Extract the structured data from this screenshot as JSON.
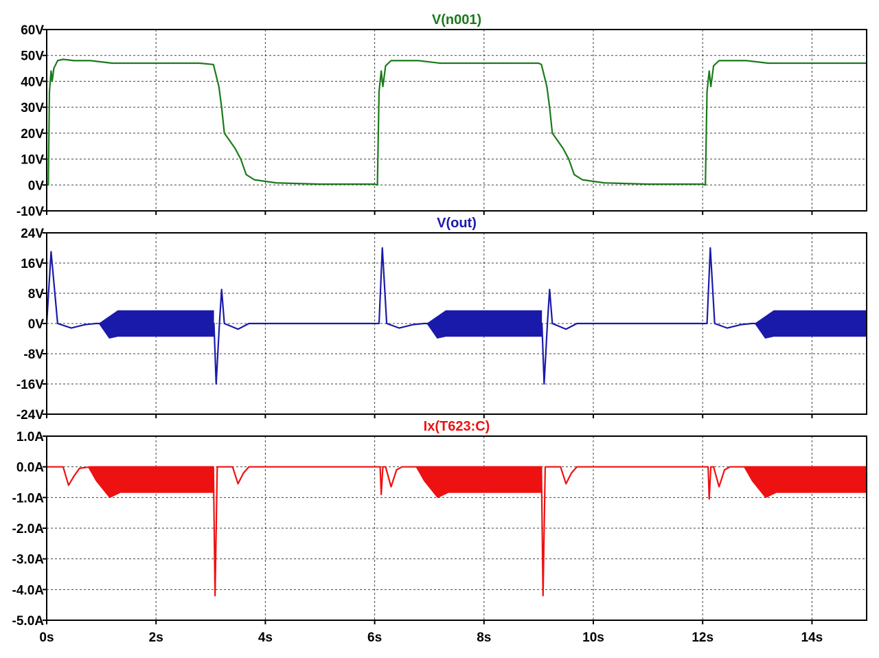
{
  "chart_data": [
    {
      "type": "line",
      "title": "V(n001)",
      "color": "#1a7a1a",
      "x_range": [
        0,
        15
      ],
      "y_range": [
        -10,
        60
      ],
      "y_ticks": [
        60,
        50,
        40,
        30,
        20,
        10,
        0,
        -10
      ],
      "y_tick_labels": [
        "60V",
        "50V",
        "40V",
        "30V",
        "20V",
        "10V",
        "0V",
        "-10V"
      ],
      "grid": true,
      "series": [
        {
          "name": "V(n001)",
          "points": [
            [
              0,
              0
            ],
            [
              0.03,
              0
            ],
            [
              0.05,
              36
            ],
            [
              0.08,
              44
            ],
            [
              0.1,
              40
            ],
            [
              0.13,
              45
            ],
            [
              0.2,
              48
            ],
            [
              0.3,
              48.5
            ],
            [
              0.5,
              48
            ],
            [
              0.8,
              48
            ],
            [
              1.2,
              47
            ],
            [
              2.0,
              47
            ],
            [
              2.8,
              47
            ],
            [
              3.05,
              46.5
            ],
            [
              3.15,
              38
            ],
            [
              3.2,
              30
            ],
            [
              3.25,
              20
            ],
            [
              3.35,
              17
            ],
            [
              3.45,
              14
            ],
            [
              3.55,
              10
            ],
            [
              3.65,
              4
            ],
            [
              3.8,
              2
            ],
            [
              4.2,
              0.8
            ],
            [
              5,
              0.3
            ],
            [
              6.0,
              0.3
            ],
            [
              6.05,
              0
            ],
            [
              6.08,
              36
            ],
            [
              6.12,
              44
            ],
            [
              6.15,
              38
            ],
            [
              6.2,
              46
            ],
            [
              6.3,
              48
            ],
            [
              6.5,
              48
            ],
            [
              6.8,
              48
            ],
            [
              7.2,
              47
            ],
            [
              8.0,
              47
            ],
            [
              9.0,
              47
            ],
            [
              9.05,
              46.5
            ],
            [
              9.15,
              38
            ],
            [
              9.2,
              30
            ],
            [
              9.25,
              20
            ],
            [
              9.35,
              17
            ],
            [
              9.45,
              14
            ],
            [
              9.55,
              10
            ],
            [
              9.65,
              4
            ],
            [
              9.8,
              2
            ],
            [
              10.2,
              0.8
            ],
            [
              11,
              0.3
            ],
            [
              12.0,
              0.3
            ],
            [
              12.05,
              0
            ],
            [
              12.08,
              36
            ],
            [
              12.12,
              44
            ],
            [
              12.15,
              38
            ],
            [
              12.2,
              46
            ],
            [
              12.3,
              48
            ],
            [
              12.5,
              48
            ],
            [
              12.8,
              48
            ],
            [
              13.2,
              47
            ],
            [
              14,
              47
            ],
            [
              15,
              47
            ]
          ]
        }
      ]
    },
    {
      "type": "line",
      "title": "V(out)",
      "color": "#1a1aaa",
      "x_range": [
        0,
        15
      ],
      "y_range": [
        -24,
        24
      ],
      "y_ticks": [
        24,
        16,
        8,
        0,
        -8,
        -16,
        -24
      ],
      "y_tick_labels": [
        "24V",
        "16V",
        "8V",
        "0V",
        "-8V",
        "-16V",
        "-24V"
      ],
      "grid": true,
      "series": [
        {
          "name": "V(out)",
          "segments": [
            [
              0,
              0
            ],
            [
              0.08,
              19
            ],
            [
              0.2,
              0
            ],
            [
              0.45,
              -1.2
            ],
            [
              0.7,
              -0.3
            ],
            [
              0.9,
              0
            ],
            [
              3.06,
              0
            ],
            [
              3.1,
              -16
            ],
            [
              3.16,
              0
            ],
            [
              3.2,
              9
            ],
            [
              3.25,
              0
            ],
            [
              3.5,
              -1.5
            ],
            [
              3.7,
              0
            ],
            [
              6.08,
              0
            ],
            [
              6.14,
              20
            ],
            [
              6.22,
              0
            ],
            [
              6.45,
              -1.2
            ],
            [
              6.7,
              -0.3
            ],
            [
              6.9,
              0
            ],
            [
              9.06,
              0
            ],
            [
              9.1,
              -16
            ],
            [
              9.16,
              0
            ],
            [
              9.2,
              9
            ],
            [
              9.25,
              0
            ],
            [
              9.5,
              -1.5
            ],
            [
              9.7,
              0
            ],
            [
              12.08,
              0
            ],
            [
              12.14,
              20
            ],
            [
              12.22,
              0
            ],
            [
              12.45,
              -1.2
            ],
            [
              12.7,
              -0.3
            ],
            [
              12.9,
              0
            ],
            [
              15,
              0
            ]
          ],
          "oscillation_bands": [
            {
              "start": 0.95,
              "ramp_end": 1.3,
              "end": 3.06,
              "upper": 3.5,
              "lower": -3.5,
              "ramp_start_lower": -4
            },
            {
              "start": 6.95,
              "ramp_end": 7.3,
              "end": 9.06,
              "upper": 3.5,
              "lower": -3.5,
              "ramp_start_lower": -4
            },
            {
              "start": 12.95,
              "ramp_end": 13.3,
              "end": 15,
              "upper": 3.5,
              "lower": -3.5,
              "ramp_start_lower": -4
            }
          ]
        }
      ]
    },
    {
      "type": "line",
      "title": "Ix(T623:C)",
      "color": "#ee1111",
      "x_range": [
        0,
        15
      ],
      "y_range": [
        -5,
        1
      ],
      "y_ticks": [
        1,
        0,
        -1,
        -2,
        -3,
        -4,
        -5
      ],
      "y_tick_labels": [
        "1.0A",
        "0.0A",
        "-1.0A",
        "-2.0A",
        "-3.0A",
        "-4.0A",
        "-5.0A"
      ],
      "grid": true,
      "series": [
        {
          "name": "Ix(T623:C)",
          "segments": [
            [
              0,
              0
            ],
            [
              0.3,
              0
            ],
            [
              0.4,
              -0.6
            ],
            [
              0.5,
              -0.3
            ],
            [
              0.6,
              -0.05
            ],
            [
              0.8,
              0
            ],
            [
              3.05,
              0
            ],
            [
              3.08,
              -4.2
            ],
            [
              3.12,
              0
            ],
            [
              3.4,
              0
            ],
            [
              3.5,
              -0.55
            ],
            [
              3.6,
              -0.2
            ],
            [
              3.7,
              0
            ],
            [
              6.1,
              0
            ],
            [
              6.12,
              -0.9
            ],
            [
              6.15,
              0
            ],
            [
              6.2,
              0
            ],
            [
              6.3,
              -0.65
            ],
            [
              6.4,
              -0.1
            ],
            [
              6.5,
              0
            ],
            [
              9.05,
              0
            ],
            [
              9.08,
              -4.2
            ],
            [
              9.12,
              0
            ],
            [
              9.4,
              0
            ],
            [
              9.5,
              -0.55
            ],
            [
              9.6,
              -0.2
            ],
            [
              9.7,
              0
            ],
            [
              12.1,
              0
            ],
            [
              12.12,
              -1.05
            ],
            [
              12.15,
              0
            ],
            [
              12.2,
              0
            ],
            [
              12.3,
              -0.65
            ],
            [
              12.4,
              -0.1
            ],
            [
              12.5,
              0
            ],
            [
              15,
              0
            ]
          ],
          "fill_bands": [
            {
              "start": 0.75,
              "dip_start": 0.9,
              "dip": 1.15,
              "dip_end": 1.35,
              "end": 3.05,
              "level": -0.85,
              "dip_level": -1.02
            },
            {
              "start": 6.75,
              "dip_start": 6.9,
              "dip": 7.15,
              "dip_end": 7.35,
              "end": 9.05,
              "level": -0.85,
              "dip_level": -1.02
            },
            {
              "start": 12.75,
              "dip_start": 12.9,
              "dip": 13.15,
              "dip_end": 13.35,
              "end": 15,
              "level": -0.85,
              "dip_level": -1.02
            }
          ]
        }
      ]
    }
  ],
  "x_axis": {
    "ticks": [
      0,
      2,
      4,
      6,
      8,
      10,
      12,
      14
    ],
    "tick_labels": [
      "0s",
      "2s",
      "4s",
      "6s",
      "8s",
      "10s",
      "12s",
      "14s"
    ]
  }
}
